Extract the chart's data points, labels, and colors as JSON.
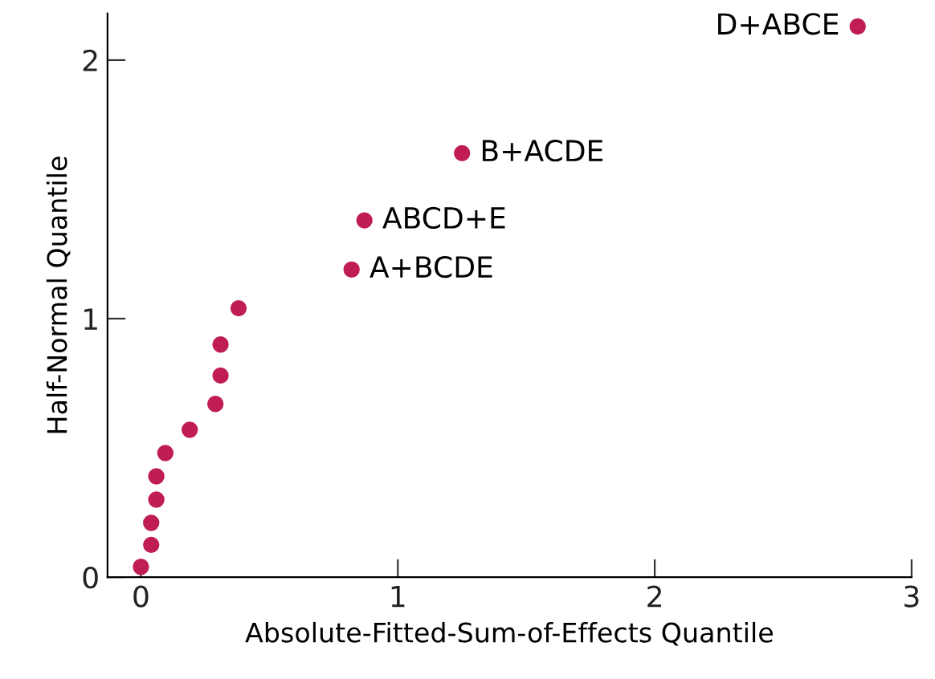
{
  "chart_data": {
    "type": "scatter",
    "xlabel": "Absolute-Fitted-Sum-of-Effects Quantile",
    "ylabel": "Half-Normal Quantile",
    "x": [
      0.0,
      0.04,
      0.04,
      0.06,
      0.06,
      0.095,
      0.19,
      0.29,
      0.31,
      0.31,
      0.38,
      0.82,
      0.87,
      1.25,
      2.79
    ],
    "series": [
      {
        "color": "#c01d55",
        "values": [
          0.04,
          0.125,
          0.21,
          0.3,
          0.39,
          0.48,
          0.57,
          0.67,
          0.78,
          0.9,
          1.04,
          1.19,
          1.38,
          1.64,
          2.13
        ]
      }
    ],
    "marker": "circle",
    "xlim": [
      -0.13,
      3
    ],
    "ylim": [
      0,
      2.18
    ],
    "xticks": [
      0,
      1,
      2,
      3
    ],
    "yticks": [
      0,
      1,
      2
    ],
    "grid": false,
    "legend": false,
    "annotations": [
      {
        "text": "A+BCDE",
        "x": 0.82,
        "y": 1.19
      },
      {
        "text": "ABCD+E",
        "x": 0.87,
        "y": 1.38
      },
      {
        "text": "B+ACDE",
        "x": 1.25,
        "y": 1.64
      },
      {
        "text": "D+ABCE",
        "x": 2.79,
        "y": 2.13
      }
    ]
  }
}
